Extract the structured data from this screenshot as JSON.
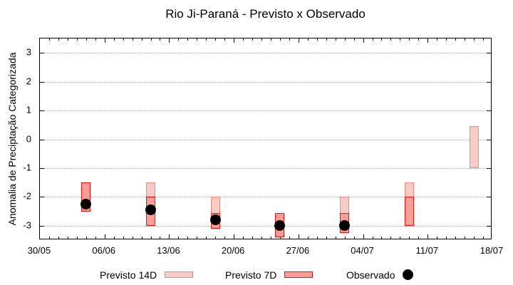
{
  "chart_data": {
    "type": "bar",
    "title": "Rio Ji-Paraná - Previsto x Observado",
    "ylabel": "Anomalia de Preciptação Categorizada",
    "xlabel": "",
    "ylim": [
      -3.5,
      3.5
    ],
    "yticks": [
      3,
      2,
      1,
      0,
      -1,
      -2,
      -3
    ],
    "grid": "horizontal-dotted",
    "grid_color": "#a8a8a8",
    "x_axis": {
      "unit": "days since 30/05",
      "range": [
        0,
        49
      ],
      "minor_tick_every": 1,
      "major_tick_every": 7
    },
    "xticks": [
      {
        "day": 0,
        "label": "30/05"
      },
      {
        "day": 7,
        "label": "06/06"
      },
      {
        "day": 14,
        "label": "13/06"
      },
      {
        "day": 21,
        "label": "20/06"
      },
      {
        "day": 28,
        "label": "27/06"
      },
      {
        "day": 35,
        "label": "04/07"
      },
      {
        "day": 42,
        "label": "11/07"
      },
      {
        "day": 49,
        "label": "18/07"
      }
    ],
    "series": [
      {
        "name": "Previsto 14D",
        "type": "box",
        "fill": "#f9cbc5",
        "border": "#f0897a",
        "boxes": [
          {
            "day": 12,
            "high": -1.5,
            "low": -3.0
          },
          {
            "day": 19,
            "high": -2.0,
            "low": -3.1
          },
          {
            "day": 33,
            "high": -2.0,
            "low": -3.25
          },
          {
            "day": 40,
            "high": -1.5,
            "low": -3.0
          },
          {
            "day": 47,
            "high": 0.45,
            "low": -1.0
          }
        ]
      },
      {
        "name": "Previsto 7D",
        "type": "box",
        "fill": "#fa9d97",
        "border": "#e9130b",
        "boxes": [
          {
            "day": 5,
            "high": -1.5,
            "low": -2.5
          },
          {
            "day": 12,
            "high": -2.0,
            "low": -3.0
          },
          {
            "day": 19,
            "high": -2.55,
            "low": -3.1
          },
          {
            "day": 26,
            "high": -2.55,
            "low": -3.4
          },
          {
            "day": 33,
            "high": -2.55,
            "low": -3.25
          },
          {
            "day": 40,
            "high": -2.0,
            "low": -3.0
          }
        ]
      },
      {
        "name": "Observado",
        "type": "point",
        "color": "#000000",
        "points": [
          {
            "day": 5,
            "value": -2.25
          },
          {
            "day": 12,
            "value": -2.45
          },
          {
            "day": 19,
            "value": -2.8
          },
          {
            "day": 26,
            "value": -3.0
          },
          {
            "day": 33,
            "value": -3.0
          }
        ]
      }
    ],
    "legend": [
      {
        "label": "Previsto 14D",
        "series": "Previsto 14D",
        "swatch": "box"
      },
      {
        "label": "Previsto 7D",
        "series": "Previsto 7D",
        "swatch": "box"
      },
      {
        "label": "Observado",
        "series": "Observado",
        "swatch": "dot"
      }
    ]
  }
}
